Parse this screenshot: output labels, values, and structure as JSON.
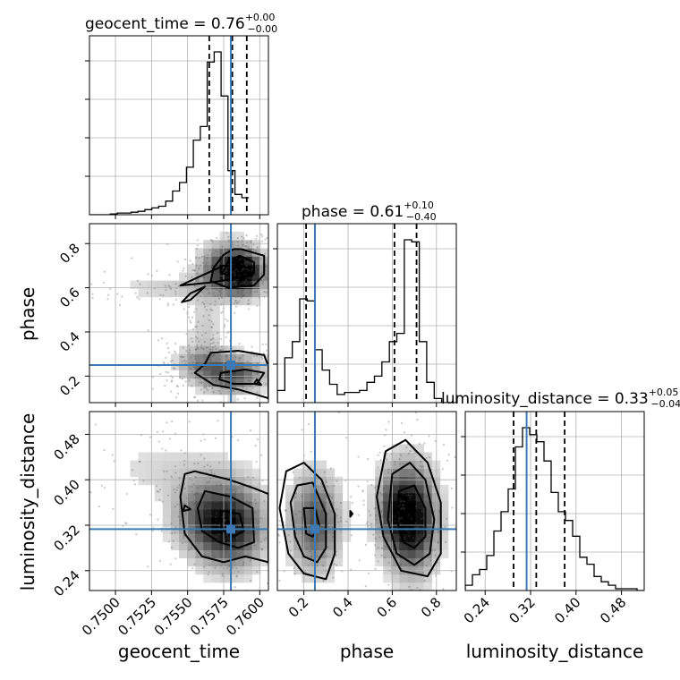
{
  "chart_data": {
    "type": "corner",
    "parameters": [
      "geocent_time",
      "phase",
      "luminosity_distance"
    ],
    "truth": {
      "geocent_time": 0.758,
      "phase": 0.25,
      "luminosity_distance": 0.313
    },
    "titles": [
      {
        "parameter": "geocent_time",
        "prefix": "geocent_time = 0.76",
        "plus": "+0.00",
        "minus": "−0.00"
      },
      {
        "parameter": "phase",
        "prefix": "phase = 0.61",
        "plus": "+0.10",
        "minus": "−0.40"
      },
      {
        "parameter": "luminosity_distance",
        "prefix": "luminosity_distance = 0.33",
        "plus": "+0.05",
        "minus": "−0.04"
      }
    ],
    "axis_labels": {
      "x": [
        "geocent_time",
        "phase",
        "luminosity_distance"
      ],
      "y": [
        "phase",
        "luminosity_distance"
      ]
    },
    "ranges": {
      "geocent_time": [
        0.7482,
        0.7606
      ],
      "phase": [
        0.08,
        0.89
      ],
      "luminosity_distance": [
        0.205,
        0.52
      ]
    },
    "ticks": {
      "geocent_time": [
        {
          "v": 0.75,
          "label": "0.7500"
        },
        {
          "v": 0.7525,
          "label": "0.7525"
        },
        {
          "v": 0.755,
          "label": "0.7550"
        },
        {
          "v": 0.7575,
          "label": "0.7575"
        },
        {
          "v": 0.76,
          "label": "0.7600"
        }
      ],
      "phase": [
        {
          "v": 0.2,
          "label": "0.2"
        },
        {
          "v": 0.4,
          "label": "0.4"
        },
        {
          "v": 0.6,
          "label": "0.6"
        },
        {
          "v": 0.8,
          "label": "0.8"
        }
      ],
      "luminosity_distance": [
        {
          "v": 0.24,
          "label": "0.24"
        },
        {
          "v": 0.32,
          "label": "0.32"
        },
        {
          "v": 0.4,
          "label": "0.40"
        },
        {
          "v": 0.48,
          "label": "0.48"
        }
      ]
    },
    "quantiles": {
      "geocent_time": [
        0.7565,
        0.7581,
        0.7591
      ],
      "phase": [
        0.21,
        0.61,
        0.71
      ],
      "luminosity_distance": [
        0.29,
        0.33,
        0.38
      ]
    },
    "histograms": {
      "geocent_time": {
        "start": 0.7482,
        "step": 0.00048,
        "counts": [
          0,
          0,
          0,
          0.5,
          1,
          1,
          1.5,
          2,
          3,
          4,
          5,
          8,
          14,
          19,
          28,
          44,
          52,
          90,
          96,
          70,
          26,
          12,
          10
        ]
      },
      "phase": {
        "start": 0.08,
        "step": 0.0338,
        "counts": [
          6,
          22,
          30,
          51,
          50,
          26,
          16,
          9,
          4,
          5,
          5,
          6,
          10,
          13,
          20,
          30,
          34,
          80,
          79,
          30,
          10,
          2,
          0,
          0
        ]
      },
      "luminosity_distance": {
        "start": 0.205,
        "step": 0.0126,
        "counts": [
          3,
          9,
          12,
          20,
          34,
          45,
          58,
          82,
          93,
          89,
          85,
          74,
          56,
          45,
          40,
          31,
          19,
          15,
          8,
          5,
          3,
          1,
          1,
          1,
          0
        ]
      }
    },
    "density_regions": {
      "phase_vs_geocent_time": [
        {
          "cx": 0.75795,
          "cy": 0.69,
          "rx": 0.00135,
          "ry": 0.075,
          "weight": 0.9
        },
        {
          "cx": 0.7591,
          "cy": 0.66,
          "rx": 0.0009,
          "ry": 0.06,
          "weight": 0.6
        },
        {
          "cx": 0.7581,
          "cy": 0.21,
          "rx": 0.0016,
          "ry": 0.06,
          "weight": 0.7
        },
        {
          "cx": 0.7557,
          "cy": 0.26,
          "rx": 0.0012,
          "ry": 0.05,
          "weight": 0.3
        },
        {
          "cx": 0.7545,
          "cy": 0.6,
          "rx": 0.0035,
          "ry": 0.04,
          "weight": 0.2
        },
        {
          "cx": 0.7562,
          "cy": 0.42,
          "rx": 0.0009,
          "ry": 0.12,
          "weight": 0.2
        }
      ],
      "luminosity_distance_vs_geocent_time": [
        {
          "cx": 0.758,
          "cy": 0.318,
          "rx": 0.0016,
          "ry": 0.05,
          "weight": 0.9
        },
        {
          "cx": 0.7557,
          "cy": 0.335,
          "rx": 0.0015,
          "ry": 0.045,
          "weight": 0.4
        },
        {
          "cx": 0.7535,
          "cy": 0.42,
          "rx": 0.004,
          "ry": 0.04,
          "weight": 0.15
        }
      ],
      "luminosity_distance_vs_phase": [
        {
          "cx": 0.25,
          "cy": 0.325,
          "rx": 0.08,
          "ry": 0.06,
          "weight": 0.7
        },
        {
          "cx": 0.69,
          "cy": 0.33,
          "rx": 0.08,
          "ry": 0.065,
          "weight": 1.0
        },
        {
          "cx": 0.6,
          "cy": 0.35,
          "rx": 0.06,
          "ry": 0.05,
          "weight": 0.4
        }
      ]
    },
    "contours": {
      "phase_vs_geocent_time": [
        [
          [
            0.7587,
            0.775
          ],
          [
            0.7603,
            0.745
          ],
          [
            0.7603,
            0.66
          ],
          [
            0.7596,
            0.61
          ],
          [
            0.7578,
            0.6
          ],
          [
            0.7566,
            0.63
          ],
          [
            0.7568,
            0.69
          ],
          [
            0.7575,
            0.75
          ],
          [
            0.7582,
            0.775
          ]
        ],
        [
          [
            0.7586,
            0.745
          ],
          [
            0.7596,
            0.715
          ],
          [
            0.7596,
            0.665
          ],
          [
            0.7585,
            0.645
          ],
          [
            0.7574,
            0.665
          ],
          [
            0.7578,
            0.72
          ]
        ],
        [
          [
            0.7562,
            0.605
          ],
          [
            0.7552,
            0.545
          ],
          [
            0.7546,
            0.535
          ],
          [
            0.7552,
            0.575
          ]
        ],
        [
          [
            0.7562,
            0.255
          ],
          [
            0.7566,
            0.305
          ],
          [
            0.7585,
            0.315
          ],
          [
            0.7603,
            0.295
          ],
          [
            0.7606,
            0.245
          ],
          [
            0.7606,
            0.1
          ],
          [
            0.7585,
            0.14
          ],
          [
            0.7568,
            0.16
          ],
          [
            0.7555,
            0.215
          ]
        ],
        [
          [
            0.7573,
            0.215
          ],
          [
            0.759,
            0.23
          ],
          [
            0.7603,
            0.215
          ],
          [
            0.7598,
            0.165
          ],
          [
            0.7582,
            0.165
          ],
          [
            0.7572,
            0.185
          ]
        ],
        [
          [
            0.7598,
            0.185
          ],
          [
            0.7601,
            0.16
          ],
          [
            0.7596,
            0.165
          ]
        ],
        [
          [
            0.7545,
            0.61
          ],
          [
            0.7568,
            0.625
          ],
          [
            0.7595,
            0.655
          ],
          [
            0.7596,
            0.69
          ],
          [
            0.7575,
            0.7
          ],
          [
            0.7558,
            0.65
          ]
        ]
      ],
      "luminosity_distance_vs_geocent_time": [
        [
          [
            0.7555,
            0.415
          ],
          [
            0.7579,
            0.4
          ],
          [
            0.7596,
            0.385
          ],
          [
            0.7606,
            0.375
          ],
          [
            0.7606,
            0.255
          ],
          [
            0.759,
            0.265
          ],
          [
            0.7575,
            0.255
          ],
          [
            0.756,
            0.265
          ],
          [
            0.7548,
            0.305
          ],
          [
            0.7545,
            0.37
          ],
          [
            0.7548,
            0.41
          ]
        ],
        [
          [
            0.7562,
            0.38
          ],
          [
            0.758,
            0.37
          ],
          [
            0.7595,
            0.35
          ],
          [
            0.7596,
            0.29
          ],
          [
            0.7585,
            0.28
          ],
          [
            0.7572,
            0.29
          ],
          [
            0.756,
            0.31
          ],
          [
            0.7557,
            0.35
          ]
        ],
        [
          [
            0.7574,
            0.345
          ],
          [
            0.7586,
            0.34
          ],
          [
            0.7589,
            0.31
          ],
          [
            0.7582,
            0.3
          ],
          [
            0.7575,
            0.31
          ],
          [
            0.7572,
            0.33
          ]
        ],
        [
          [
            0.7548,
            0.355
          ],
          [
            0.7552,
            0.348
          ],
          [
            0.7547,
            0.345
          ]
        ]
      ],
      "luminosity_distance_vs_phase": [
        [
          [
            0.12,
            0.415
          ],
          [
            0.2,
            0.43
          ],
          [
            0.28,
            0.4
          ],
          [
            0.34,
            0.34
          ],
          [
            0.34,
            0.27
          ],
          [
            0.3,
            0.225
          ],
          [
            0.2,
            0.235
          ],
          [
            0.13,
            0.27
          ],
          [
            0.09,
            0.35
          ]
        ],
        [
          [
            0.17,
            0.39
          ],
          [
            0.24,
            0.395
          ],
          [
            0.3,
            0.34
          ],
          [
            0.3,
            0.28
          ],
          [
            0.26,
            0.255
          ],
          [
            0.2,
            0.265
          ],
          [
            0.16,
            0.3
          ],
          [
            0.14,
            0.36
          ]
        ],
        [
          [
            0.2,
            0.35
          ],
          [
            0.25,
            0.35
          ],
          [
            0.27,
            0.32
          ],
          [
            0.24,
            0.3
          ],
          [
            0.21,
            0.305
          ]
        ],
        [
          [
            0.57,
            0.45
          ],
          [
            0.66,
            0.47
          ],
          [
            0.76,
            0.43
          ],
          [
            0.82,
            0.36
          ],
          [
            0.82,
            0.27
          ],
          [
            0.76,
            0.23
          ],
          [
            0.64,
            0.24
          ],
          [
            0.56,
            0.3
          ],
          [
            0.53,
            0.37
          ]
        ],
        [
          [
            0.6,
            0.41
          ],
          [
            0.68,
            0.43
          ],
          [
            0.75,
            0.4
          ],
          [
            0.79,
            0.33
          ],
          [
            0.77,
            0.27
          ],
          [
            0.7,
            0.25
          ],
          [
            0.62,
            0.27
          ],
          [
            0.58,
            0.33
          ]
        ],
        [
          [
            0.63,
            0.38
          ],
          [
            0.7,
            0.39
          ],
          [
            0.75,
            0.35
          ],
          [
            0.75,
            0.3
          ],
          [
            0.7,
            0.28
          ],
          [
            0.65,
            0.29
          ],
          [
            0.62,
            0.33
          ]
        ],
        [
          [
            0.41,
            0.345
          ],
          [
            0.42,
            0.34
          ],
          [
            0.41,
            0.335
          ]
        ]
      ]
    }
  }
}
